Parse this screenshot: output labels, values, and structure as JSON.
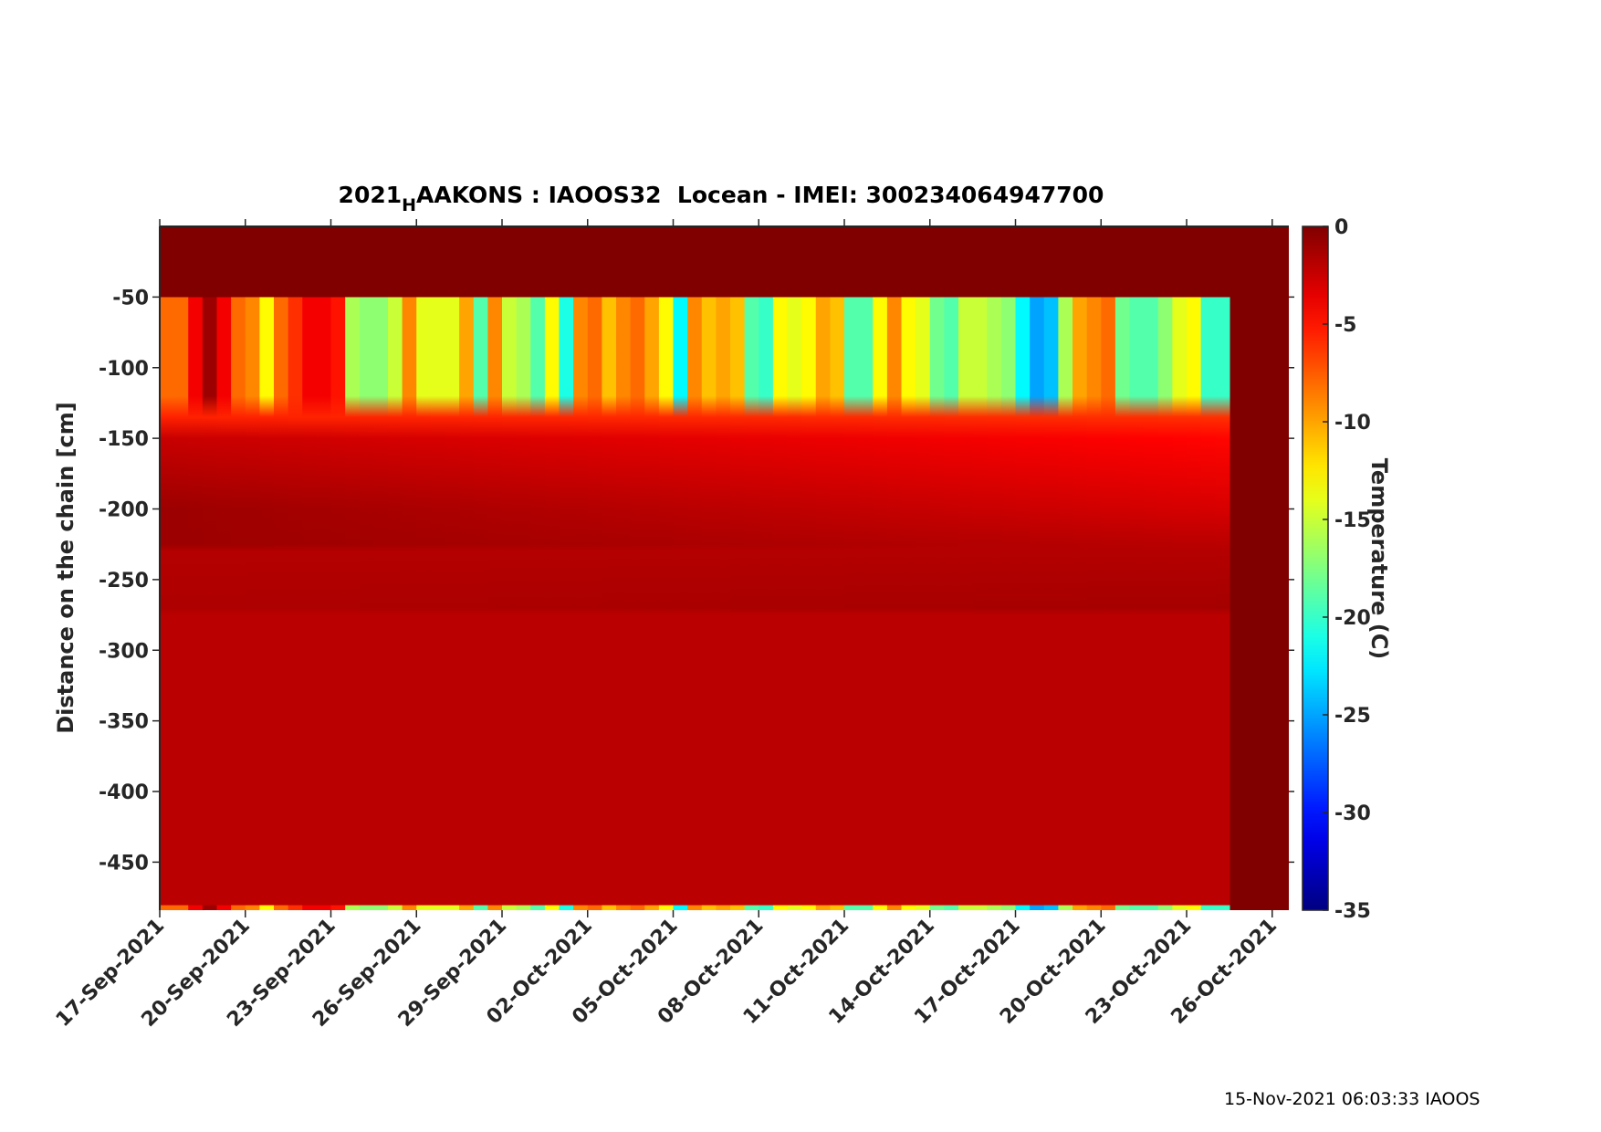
{
  "chart_data": {
    "type": "heatmap",
    "title_prefix": "2021",
    "title_subscript": "H",
    "title_rest": "AAKONS : IAOOS32  Locean - IMEI: 300234064947700",
    "xlabel": "",
    "ylabel": "Distance on the chain [cm]",
    "colorbar_label": "Temperature (C)",
    "xlim": [
      "2021-09-17 00:00",
      "2021-10-26 14:00"
    ],
    "ylim": [
      -484,
      0
    ],
    "clim": [
      -35,
      0
    ],
    "colormap": "jet",
    "x_ticks": [
      "17-Sep-2021",
      "20-Sep-2021",
      "23-Sep-2021",
      "26-Sep-2021",
      "29-Sep-2021",
      "02-Oct-2021",
      "05-Oct-2021",
      "08-Oct-2021",
      "11-Oct-2021",
      "14-Oct-2021",
      "17-Oct-2021",
      "20-Oct-2021",
      "23-Oct-2021",
      "26-Oct-2021"
    ],
    "x_tick_dates": [
      "2021-09-17",
      "2021-09-20",
      "2021-09-23",
      "2021-09-26",
      "2021-09-29",
      "2021-10-02",
      "2021-10-05",
      "2021-10-08",
      "2021-10-11",
      "2021-10-14",
      "2021-10-17",
      "2021-10-20",
      "2021-10-23",
      "2021-10-26"
    ],
    "y_ticks": [
      -50,
      -100,
      -150,
      -200,
      -250,
      -300,
      -350,
      -400,
      -450
    ],
    "y_tick_labels": [
      "-50",
      "-100",
      "-150",
      "-200",
      "-250",
      "-300",
      "-350",
      "-400",
      "-450"
    ],
    "colorbar_ticks": [
      0,
      -5,
      -10,
      -15,
      -20,
      -25,
      -30,
      -35
    ],
    "colorbar_tick_labels": [
      "0",
      "-5",
      "-10",
      "-15",
      "-20",
      "-25",
      "-30",
      "-35"
    ],
    "times": [
      "2021-09-17 00:00",
      "2021-09-17 12:00",
      "2021-09-18 00:00",
      "2021-09-18 12:00",
      "2021-09-19 00:00",
      "2021-09-19 12:00",
      "2021-09-20 00:00",
      "2021-09-20 12:00",
      "2021-09-21 00:00",
      "2021-09-21 12:00",
      "2021-09-22 00:00",
      "2021-09-22 12:00",
      "2021-09-23 00:00",
      "2021-09-23 12:00",
      "2021-09-24 00:00",
      "2021-09-24 12:00",
      "2021-09-25 00:00",
      "2021-09-25 12:00",
      "2021-09-26 00:00",
      "2021-09-26 12:00",
      "2021-09-27 00:00",
      "2021-09-27 12:00",
      "2021-09-28 00:00",
      "2021-09-28 12:00",
      "2021-09-29 00:00",
      "2021-09-29 12:00",
      "2021-09-30 00:00",
      "2021-09-30 12:00",
      "2021-10-01 00:00",
      "2021-10-01 12:00",
      "2021-10-02 00:00",
      "2021-10-02 12:00",
      "2021-10-03 00:00",
      "2021-10-03 12:00",
      "2021-10-04 00:00",
      "2021-10-04 12:00",
      "2021-10-05 00:00",
      "2021-10-05 12:00",
      "2021-10-06 00:00",
      "2021-10-06 12:00",
      "2021-10-07 00:00",
      "2021-10-07 12:00",
      "2021-10-08 00:00",
      "2021-10-08 12:00",
      "2021-10-09 00:00",
      "2021-10-09 12:00",
      "2021-10-10 00:00",
      "2021-10-10 12:00",
      "2021-10-11 00:00",
      "2021-10-11 12:00",
      "2021-10-12 00:00",
      "2021-10-12 12:00",
      "2021-10-13 00:00",
      "2021-10-13 12:00",
      "2021-10-14 00:00",
      "2021-10-14 12:00",
      "2021-10-15 00:00",
      "2021-10-15 12:00",
      "2021-10-16 00:00",
      "2021-10-16 12:00",
      "2021-10-17 00:00",
      "2021-10-17 12:00",
      "2021-10-18 00:00",
      "2021-10-18 12:00",
      "2021-10-19 00:00",
      "2021-10-19 12:00",
      "2021-10-20 00:00",
      "2021-10-20 12:00",
      "2021-10-21 00:00",
      "2021-10-21 12:00",
      "2021-10-22 00:00",
      "2021-10-22 12:00",
      "2021-10-23 00:00",
      "2021-10-23 12:00",
      "2021-10-24 00:00"
    ],
    "data_end": "2021-10-24 12:00",
    "above_sensor_value": 0,
    "surface_layer_depth": [
      -50,
      -120
    ],
    "surface_temperature": [
      -8,
      -8,
      -4,
      -1,
      -4,
      -8,
      -9,
      -13,
      -8,
      -6,
      -4,
      -4,
      -5,
      -16,
      -17,
      -17,
      -15,
      -9,
      -14,
      -14,
      -14,
      -10,
      -19,
      -9,
      -15,
      -16,
      -19,
      -13,
      -21,
      -9,
      -8,
      -11,
      -9,
      -8,
      -10,
      -13,
      -22,
      -9,
      -11,
      -10,
      -11,
      -19,
      -20,
      -13,
      -14,
      -13,
      -10,
      -11,
      -19,
      -19,
      -13,
      -9,
      -13,
      -14,
      -18,
      -19,
      -15,
      -15,
      -16,
      -17,
      -22,
      -25,
      -24,
      -16,
      -10,
      -9,
      -8,
      -18,
      -19,
      -19,
      -17,
      -14,
      -13,
      -20,
      -20
    ],
    "profile_levels": [
      {
        "depth": -135,
        "start": -5.5,
        "end": -6.0
      },
      {
        "depth": -150,
        "start": -2.5,
        "end": -4.5
      },
      {
        "depth": -200,
        "start": -1.0,
        "end": -3.0
      },
      {
        "depth": -225,
        "start": -1.0,
        "end": -2.0
      },
      {
        "depth": -230,
        "start": -1.8,
        "end": -1.8
      },
      {
        "depth": -270,
        "start": -1.6,
        "end": -1.3
      },
      {
        "depth": -275,
        "start": -2.0,
        "end": -2.0
      },
      {
        "depth": -480,
        "start": -2.0,
        "end": -2.0
      }
    ]
  },
  "footer": {
    "timestamp": "15-Nov-2021 06:03:33 IAOOS"
  }
}
